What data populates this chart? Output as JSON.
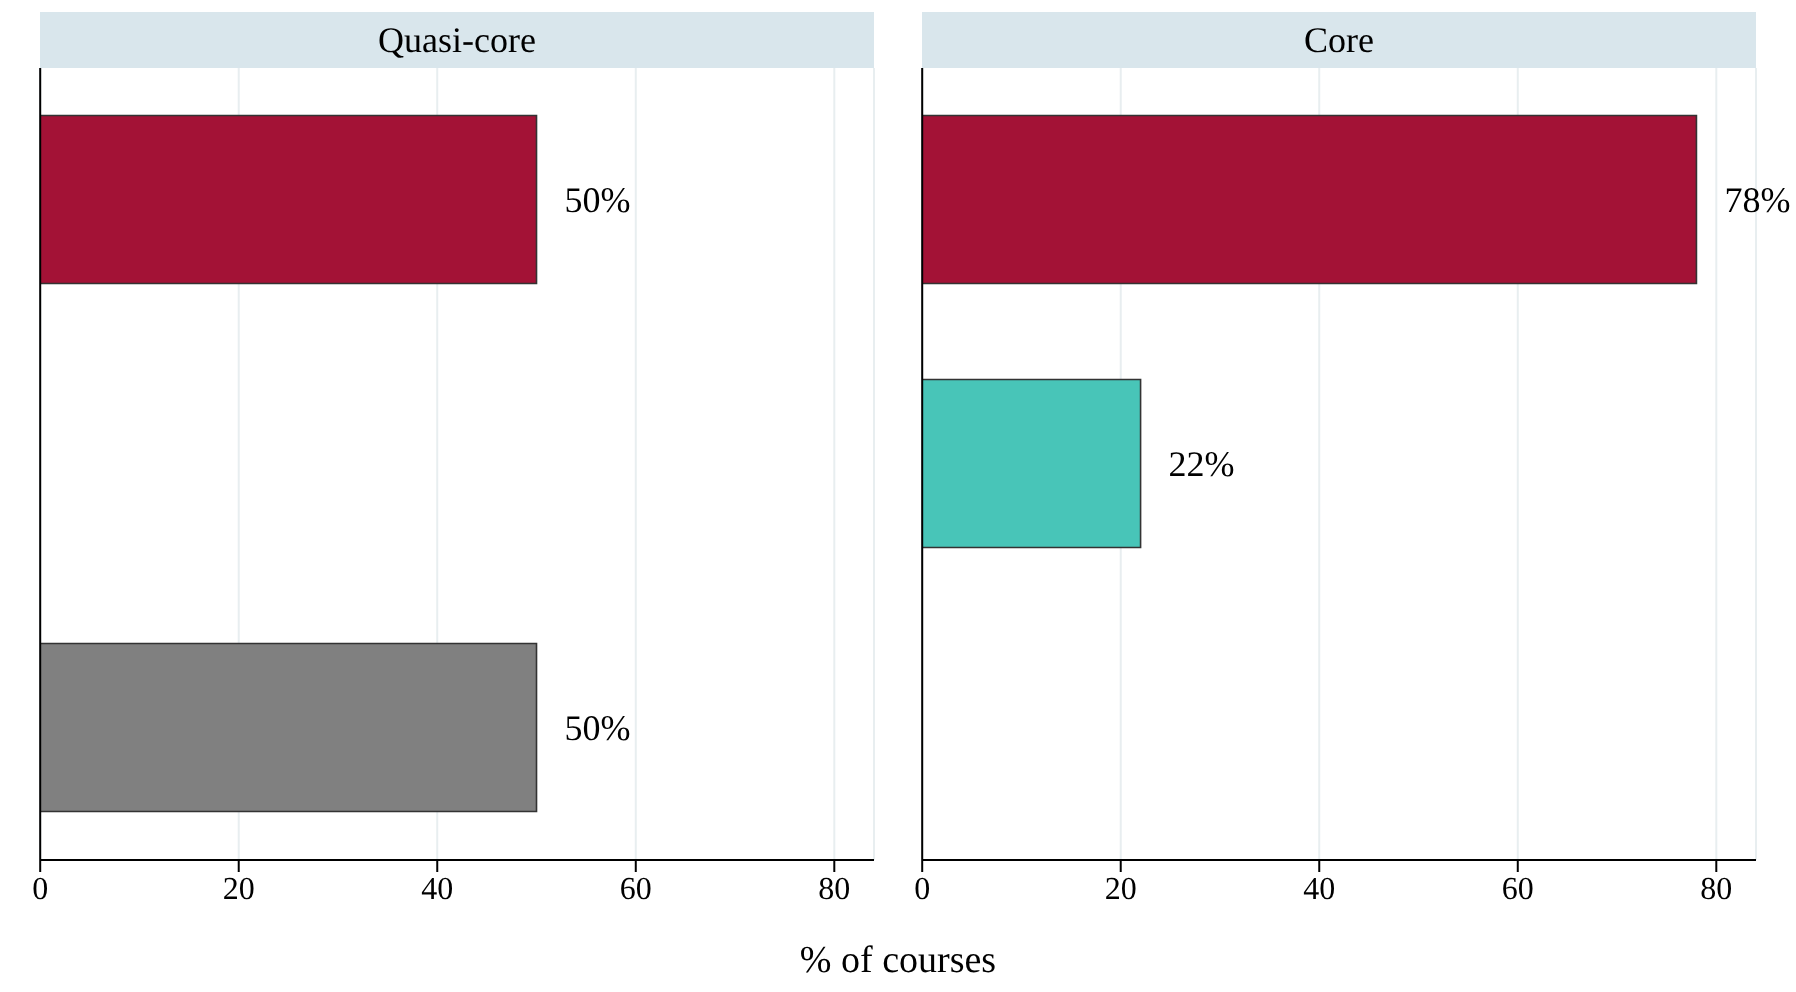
{
  "chart_data": [
    {
      "type": "bar",
      "orientation": "horizontal",
      "title": "Quasi-core",
      "xlabel": "% of courses",
      "categories": [
        null,
        null,
        null
      ],
      "values": [
        50,
        null,
        50
      ],
      "colors": [
        "#a31236",
        "#a31236",
        "#808080"
      ],
      "value_labels": [
        "50%",
        null,
        "50%"
      ],
      "xlim": [
        0,
        84
      ],
      "xticks": [
        0,
        20,
        40,
        60,
        80
      ],
      "grid": "x",
      "legend": false
    },
    {
      "type": "bar",
      "orientation": "horizontal",
      "title": "Core",
      "categories": [
        null,
        null,
        null
      ],
      "values": [
        78,
        22,
        null
      ],
      "colors": [
        "#a31236",
        "#48c5b8",
        "#48c5b8"
      ],
      "value_labels": [
        "78%",
        "22%",
        null
      ],
      "xlim": [
        0,
        84
      ],
      "xticks": [
        0,
        20,
        40,
        60,
        80
      ],
      "grid": "x",
      "legend": false
    }
  ]
}
